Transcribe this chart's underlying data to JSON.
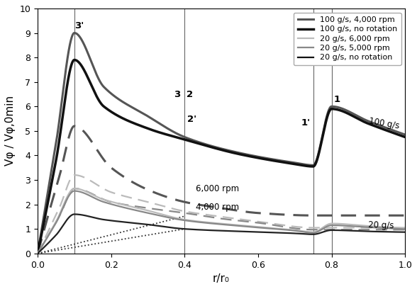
{
  "xlabel": "r/r₀",
  "ylabel": "Vφ / Vφ,0min",
  "xlim": [
    0.0,
    1.0
  ],
  "ylim": [
    0.0,
    10.0
  ],
  "yticks": [
    0,
    1,
    2,
    3,
    4,
    5,
    6,
    7,
    8,
    9,
    10
  ],
  "xticks": [
    0.0,
    0.2,
    0.4,
    0.6,
    0.8,
    1.0
  ],
  "vlines": [
    0.1,
    0.4,
    0.75,
    0.8
  ],
  "solid_100_4000": {
    "pts": [
      [
        0,
        0
      ],
      [
        0.05,
        4.5
      ],
      [
        0.1,
        9.0
      ],
      [
        0.18,
        6.8
      ],
      [
        0.3,
        5.6
      ],
      [
        0.4,
        4.75
      ],
      [
        0.55,
        4.1
      ],
      [
        0.7,
        3.7
      ],
      [
        0.75,
        3.6
      ],
      [
        0.8,
        6.0
      ],
      [
        0.9,
        5.4
      ],
      [
        1.0,
        4.85
      ]
    ],
    "color": "#555555",
    "lw": 2.2
  },
  "solid_100_norot": {
    "pts": [
      [
        0,
        0
      ],
      [
        0.05,
        3.8
      ],
      [
        0.1,
        7.9
      ],
      [
        0.18,
        6.0
      ],
      [
        0.3,
        5.1
      ],
      [
        0.4,
        4.65
      ],
      [
        0.55,
        4.05
      ],
      [
        0.7,
        3.65
      ],
      [
        0.75,
        3.55
      ],
      [
        0.8,
        5.9
      ],
      [
        0.9,
        5.3
      ],
      [
        1.0,
        4.75
      ]
    ],
    "color": "#111111",
    "lw": 2.5
  },
  "solid_20_6000": {
    "pts": [
      [
        0,
        0
      ],
      [
        0.05,
        1.3
      ],
      [
        0.1,
        2.65
      ],
      [
        0.18,
        2.2
      ],
      [
        0.3,
        1.75
      ],
      [
        0.4,
        1.38
      ],
      [
        0.55,
        1.15
      ],
      [
        0.7,
        0.95
      ],
      [
        0.75,
        0.87
      ],
      [
        0.8,
        1.22
      ],
      [
        0.9,
        1.12
      ],
      [
        1.0,
        1.03
      ]
    ],
    "color": "#bbbbbb",
    "lw": 1.6
  },
  "solid_20_5000": {
    "pts": [
      [
        0,
        0
      ],
      [
        0.05,
        1.25
      ],
      [
        0.1,
        2.55
      ],
      [
        0.18,
        2.1
      ],
      [
        0.3,
        1.65
      ],
      [
        0.4,
        1.35
      ],
      [
        0.55,
        1.12
      ],
      [
        0.7,
        0.93
      ],
      [
        0.75,
        0.84
      ],
      [
        0.8,
        1.15
      ],
      [
        0.9,
        1.07
      ],
      [
        1.0,
        0.99
      ]
    ],
    "color": "#888888",
    "lw": 1.6
  },
  "solid_20_norot": {
    "pts": [
      [
        0,
        0
      ],
      [
        0.05,
        0.75
      ],
      [
        0.1,
        1.6
      ],
      [
        0.18,
        1.38
      ],
      [
        0.3,
        1.18
      ],
      [
        0.4,
        1.0
      ],
      [
        0.55,
        0.9
      ],
      [
        0.7,
        0.82
      ],
      [
        0.75,
        0.78
      ],
      [
        0.8,
        0.95
      ],
      [
        0.9,
        0.9
      ],
      [
        1.0,
        0.87
      ]
    ],
    "color": "#222222",
    "lw": 1.6
  },
  "dashed_100_4000": {
    "pts": [
      [
        0,
        0
      ],
      [
        0.06,
        3.2
      ],
      [
        0.1,
        5.2
      ],
      [
        0.2,
        3.5
      ],
      [
        0.3,
        2.6
      ],
      [
        0.4,
        2.1
      ],
      [
        0.5,
        1.85
      ],
      [
        0.6,
        1.65
      ],
      [
        0.75,
        1.55
      ],
      [
        0.8,
        1.55
      ],
      [
        1.0,
        1.55
      ]
    ],
    "color": "#555555",
    "lw": 2.2
  },
  "dashed_20_6000": {
    "pts": [
      [
        0,
        0
      ],
      [
        0.06,
        1.9
      ],
      [
        0.1,
        3.2
      ],
      [
        0.2,
        2.5
      ],
      [
        0.3,
        2.1
      ],
      [
        0.4,
        1.72
      ],
      [
        0.5,
        1.5
      ],
      [
        0.6,
        1.3
      ],
      [
        0.75,
        1.05
      ],
      [
        0.8,
        1.05
      ],
      [
        1.0,
        1.05
      ]
    ],
    "color": "#bbbbbb",
    "lw": 1.6
  },
  "dashed_20_5000": {
    "pts": [
      [
        0,
        0
      ],
      [
        0.06,
        1.55
      ],
      [
        0.1,
        2.65
      ],
      [
        0.2,
        2.1
      ],
      [
        0.3,
        1.85
      ],
      [
        0.4,
        1.65
      ],
      [
        0.5,
        1.42
      ],
      [
        0.6,
        1.25
      ],
      [
        0.75,
        0.97
      ],
      [
        0.8,
        0.97
      ],
      [
        1.0,
        0.97
      ]
    ],
    "color": "#888888",
    "lw": 1.6
  },
  "dotted_6000": {
    "pts": [
      [
        0,
        0.0
      ],
      [
        0.1,
        0.38
      ],
      [
        0.2,
        0.76
      ],
      [
        0.3,
        1.14
      ],
      [
        0.4,
        1.52
      ]
    ],
    "color": "#333333",
    "lw": 1.3
  },
  "dotted_4000": {
    "pts": [
      [
        0,
        0.0
      ],
      [
        0.1,
        0.25
      ],
      [
        0.2,
        0.5
      ],
      [
        0.3,
        0.75
      ],
      [
        0.4,
        1.0
      ]
    ],
    "color": "#333333",
    "lw": 1.3
  }
}
